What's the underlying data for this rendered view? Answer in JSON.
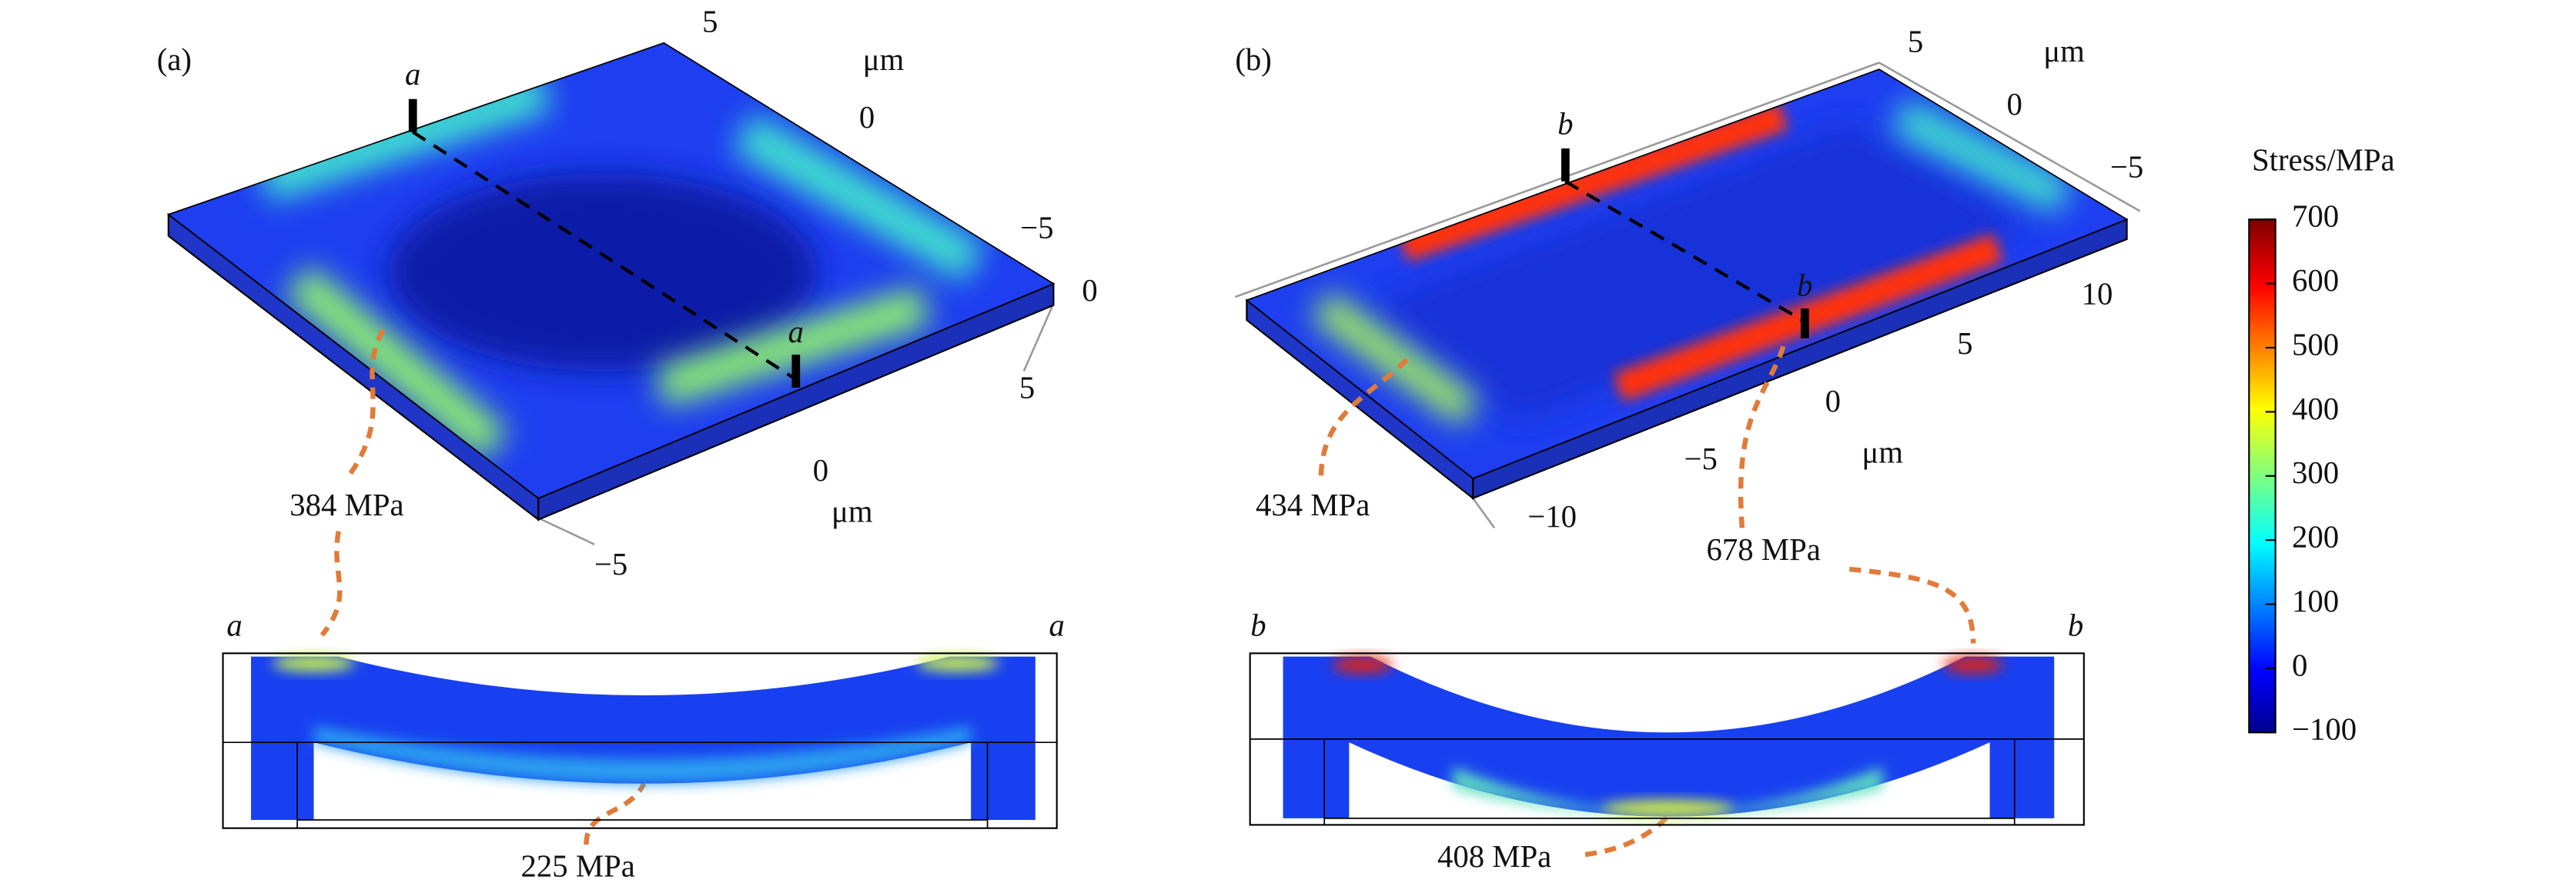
{
  "panels": [
    {
      "label": "(a)",
      "section_label": "a",
      "unit": "μm",
      "axis_labels": [
        "5",
        "0",
        "−5",
        "0",
        "5",
        "0",
        "−5"
      ],
      "annotations": [
        "384 MPa",
        "225 MPa"
      ]
    },
    {
      "label": "(b)",
      "section_label": "b",
      "unit": "μm",
      "axis_labels": [
        "5",
        "0",
        "−5",
        "10",
        "5",
        "0",
        "−5",
        "−10"
      ],
      "annotations": [
        "434 MPa",
        "678 MPa",
        "408 MPa"
      ]
    }
  ],
  "colorbar": {
    "title": "Stress/MPa",
    "lim": [
      -100,
      700
    ],
    "ticks": [
      700,
      600,
      500,
      400,
      300,
      200,
      100,
      0,
      {
        "value": -100,
        "label": "−100"
      }
    ]
  }
}
